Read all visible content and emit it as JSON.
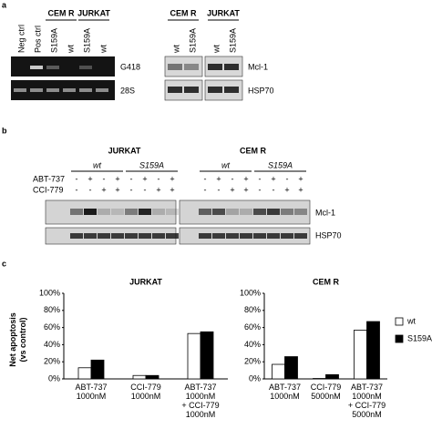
{
  "panel_a": {
    "label": "a",
    "gel": {
      "groups": [
        "CEM R",
        "JURKAT"
      ],
      "lanes": [
        "Neg ctrl",
        "Pos ctrl",
        "S159A",
        "wt",
        "S159A",
        "wt"
      ],
      "rows": [
        "G418",
        "28S"
      ]
    },
    "blot": {
      "groups": [
        "CEM R",
        "JURKAT"
      ],
      "lanes": [
        "wt",
        "S159A",
        "wt",
        "S159A"
      ],
      "rows": [
        "Mcl-1",
        "HSP70"
      ]
    }
  },
  "panel_b": {
    "label": "b",
    "groups": [
      "JURKAT",
      "CEM R"
    ],
    "subgroups": [
      "wt",
      "S159A",
      "wt",
      "S159A"
    ],
    "treatments": [
      {
        "name": "ABT-737",
        "signs": [
          "-",
          "+",
          "-",
          "+",
          "-",
          "+",
          "-",
          "+",
          "-",
          "+",
          "-",
          "+",
          "-",
          "+",
          "-",
          "+"
        ]
      },
      {
        "name": "CCI-779",
        "signs": [
          "-",
          "-",
          "+",
          "+",
          "-",
          "-",
          "+",
          "+",
          "-",
          "-",
          "+",
          "+",
          "-",
          "-",
          "+",
          "+"
        ]
      }
    ],
    "rows": [
      "Mcl-1",
      "HSP70"
    ]
  },
  "panel_c": {
    "label": "c",
    "y_label": "Net apoptosis\n(vs control)"
  },
  "chart_data": [
    {
      "type": "bar",
      "title": "JURKAT",
      "categories": [
        "ABT-737\n1000nM",
        "CCI-779\n1000nM",
        "ABT-737\n1000nM\n+ CCI-779\n1000nM"
      ],
      "series": [
        {
          "color": "#ffffff",
          "values": [
            13,
            4,
            53
          ]
        },
        {
          "color": "#000000",
          "values": [
            22,
            4,
            55
          ]
        }
      ],
      "ylim": [
        0,
        100
      ],
      "yticks": [
        {
          "value": 0,
          "label": "0%"
        },
        {
          "value": 20,
          "label": "20%"
        },
        {
          "value": 40,
          "label": "40%"
        },
        {
          "value": 60,
          "label": "60%"
        },
        {
          "value": 80,
          "label": "80%"
        },
        {
          "value": 100,
          "label": "100%"
        }
      ]
    },
    {
      "type": "bar",
      "title": "CEM R",
      "categories": [
        "ABT-737\n1000nM",
        "CCI-779\n5000nM",
        "ABT-737\n1000nM\n+ CCI-779\n5000nM"
      ],
      "series": [
        {
          "name": "wt",
          "color": "#ffffff",
          "values": [
            17,
            0.5,
            57
          ]
        },
        {
          "name": "S159A",
          "color": "#000000",
          "values": [
            26,
            5,
            67
          ]
        }
      ],
      "ylim": [
        0,
        100
      ],
      "yticks": [
        {
          "value": 0,
          "label": "0%"
        },
        {
          "value": 20,
          "label": "20%"
        },
        {
          "value": 40,
          "label": "40%"
        },
        {
          "value": 60,
          "label": "60%"
        },
        {
          "value": 80,
          "label": "80%"
        },
        {
          "value": 100,
          "label": "100%"
        }
      ],
      "legend": "right"
    }
  ]
}
